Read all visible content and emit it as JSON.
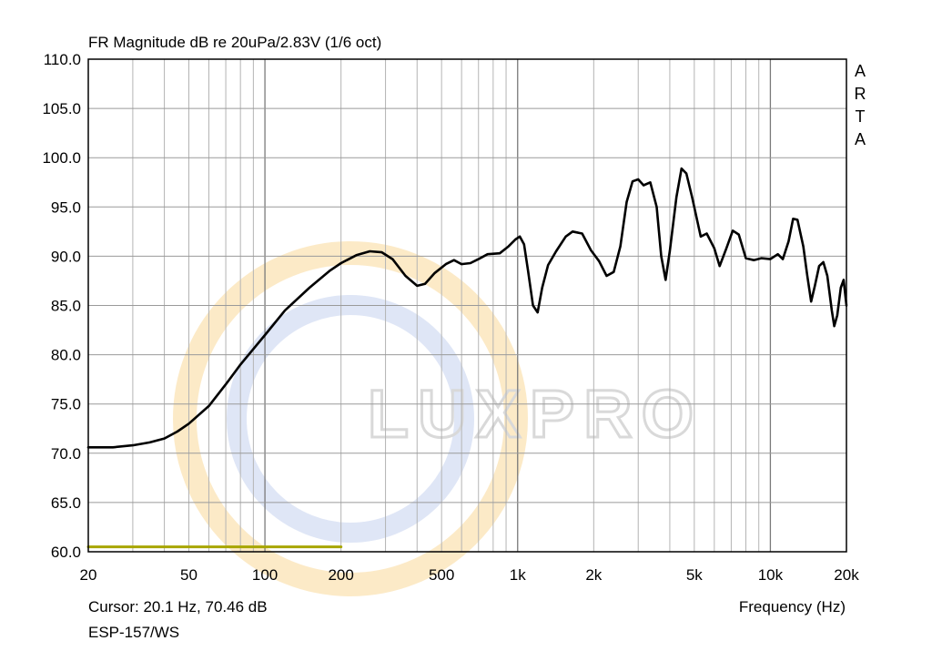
{
  "chart_data": {
    "type": "line",
    "title": "FR Magnitude dB re 20uPa/2.83V (1/6 oct)",
    "xlabel": "Frequency (Hz)",
    "ylabel": "",
    "x_scale": "log",
    "xlim": [
      20,
      20000
    ],
    "ylim": [
      60,
      110
    ],
    "grid": true,
    "xticks": [
      {
        "value": 20,
        "label": "20"
      },
      {
        "value": 50,
        "label": "50"
      },
      {
        "value": 100,
        "label": "100"
      },
      {
        "value": 200,
        "label": "200"
      },
      {
        "value": 500,
        "label": "500"
      },
      {
        "value": 1000,
        "label": "1k"
      },
      {
        "value": 2000,
        "label": "2k"
      },
      {
        "value": 5000,
        "label": "5k"
      },
      {
        "value": 10000,
        "label": "10k"
      },
      {
        "value": 20000,
        "label": "20k"
      }
    ],
    "yticks": [
      {
        "value": 60,
        "label": "60.0"
      },
      {
        "value": 65,
        "label": "65.0"
      },
      {
        "value": 70,
        "label": "70.0"
      },
      {
        "value": 75,
        "label": "75.0"
      },
      {
        "value": 80,
        "label": "80.0"
      },
      {
        "value": 85,
        "label": "85.0"
      },
      {
        "value": 90,
        "label": "90.0"
      },
      {
        "value": 95,
        "label": "95.0"
      },
      {
        "value": 100,
        "label": "100.0"
      },
      {
        "value": 105,
        "label": "105.0"
      },
      {
        "value": 110,
        "label": "110.0"
      }
    ],
    "series": [
      {
        "color": "#000000",
        "points": [
          [
            20,
            70.6
          ],
          [
            25,
            70.6
          ],
          [
            30,
            70.8
          ],
          [
            35,
            71.1
          ],
          [
            40,
            71.5
          ],
          [
            45,
            72.2
          ],
          [
            50,
            73.0
          ],
          [
            60,
            74.8
          ],
          [
            70,
            77.0
          ],
          [
            80,
            79.0
          ],
          [
            100,
            82.0
          ],
          [
            120,
            84.5
          ],
          [
            150,
            86.8
          ],
          [
            180,
            88.5
          ],
          [
            200,
            89.3
          ],
          [
            230,
            90.1
          ],
          [
            260,
            90.5
          ],
          [
            290,
            90.4
          ],
          [
            320,
            89.7
          ],
          [
            360,
            88.0
          ],
          [
            400,
            87.0
          ],
          [
            430,
            87.2
          ],
          [
            470,
            88.3
          ],
          [
            520,
            89.2
          ],
          [
            560,
            89.6
          ],
          [
            600,
            89.2
          ],
          [
            650,
            89.3
          ],
          [
            700,
            89.7
          ],
          [
            760,
            90.2
          ],
          [
            850,
            90.3
          ],
          [
            920,
            91.0
          ],
          [
            980,
            91.7
          ],
          [
            1020,
            92.0
          ],
          [
            1060,
            91.2
          ],
          [
            1100,
            88.5
          ],
          [
            1150,
            85.0
          ],
          [
            1200,
            84.3
          ],
          [
            1250,
            86.8
          ],
          [
            1320,
            89.1
          ],
          [
            1420,
            90.5
          ],
          [
            1550,
            92.0
          ],
          [
            1650,
            92.5
          ],
          [
            1800,
            92.3
          ],
          [
            1950,
            90.6
          ],
          [
            2100,
            89.5
          ],
          [
            2250,
            88.0
          ],
          [
            2400,
            88.4
          ],
          [
            2550,
            91.0
          ],
          [
            2700,
            95.5
          ],
          [
            2850,
            97.6
          ],
          [
            3000,
            97.8
          ],
          [
            3150,
            97.2
          ],
          [
            3350,
            97.5
          ],
          [
            3550,
            95.0
          ],
          [
            3700,
            90.0
          ],
          [
            3850,
            87.6
          ],
          [
            4000,
            90.5
          ],
          [
            4250,
            96.0
          ],
          [
            4450,
            98.9
          ],
          [
            4650,
            98.4
          ],
          [
            4900,
            96.0
          ],
          [
            5300,
            92.0
          ],
          [
            5600,
            92.3
          ],
          [
            6000,
            90.8
          ],
          [
            6300,
            89.0
          ],
          [
            6700,
            90.8
          ],
          [
            7100,
            92.6
          ],
          [
            7500,
            92.2
          ],
          [
            8000,
            89.8
          ],
          [
            8600,
            89.6
          ],
          [
            9200,
            89.8
          ],
          [
            10000,
            89.7
          ],
          [
            10700,
            90.2
          ],
          [
            11200,
            89.7
          ],
          [
            11800,
            91.5
          ],
          [
            12300,
            93.8
          ],
          [
            12800,
            93.7
          ],
          [
            13500,
            91.0
          ],
          [
            14000,
            88.0
          ],
          [
            14500,
            85.4
          ],
          [
            15000,
            87.0
          ],
          [
            15600,
            89.0
          ],
          [
            16200,
            89.4
          ],
          [
            16800,
            88.0
          ],
          [
            17500,
            84.5
          ],
          [
            17900,
            82.9
          ],
          [
            18400,
            84.0
          ],
          [
            19000,
            86.8
          ],
          [
            19500,
            87.6
          ],
          [
            20000,
            85.0
          ]
        ]
      },
      {
        "color": "#a8a600",
        "points": [
          [
            20,
            60.5
          ],
          [
            200,
            60.5
          ]
        ]
      }
    ]
  },
  "brand_vertical": [
    "A",
    "R",
    "T",
    "A"
  ],
  "cursor_text": "Cursor: 20.1 Hz, 70.46 dB",
  "model_text": "ESP-157/WS",
  "watermark_text": "LUXPRO"
}
